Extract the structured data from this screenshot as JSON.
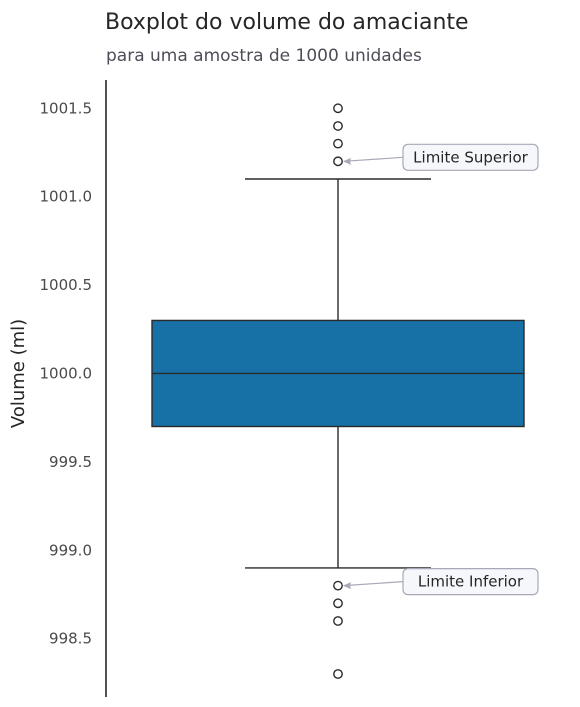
{
  "chart_data": {
    "type": "box",
    "title": "Boxplot do volume do amaciante",
    "subtitle": "para uma amostra de 1000 unidades",
    "xlabel": "",
    "ylabel": "Volume (ml)",
    "ylim": [
      998.17,
      1001.66
    ],
    "yticks": [
      998.5,
      999.0,
      999.5,
      1000.0,
      1000.5,
      1001.0,
      1001.5
    ],
    "ytick_labels": [
      "998.5",
      "999.0",
      "999.5",
      "1000.0",
      "1000.5",
      "1001.0",
      "1001.5"
    ],
    "grid": false,
    "box": {
      "q1": 999.7,
      "median": 1000.0,
      "q3": 1000.3,
      "whisker_low": 998.9,
      "whisker_high": 1001.1,
      "outliers": [
        1001.5,
        1001.4,
        1001.3,
        1001.2,
        998.8,
        998.7,
        998.6,
        998.3
      ]
    },
    "annotations": [
      {
        "text": "Limite Superior",
        "value": 1001.2
      },
      {
        "text": "Limite Inferior",
        "value": 998.8
      }
    ],
    "colors": {
      "box_fill": "#1770a6",
      "line": "#2b2b2b",
      "axis": "#262626",
      "arrow": "#a8a8b8",
      "annotation_border": "#a8a8b8",
      "annotation_fill": "#f6f7fb"
    }
  }
}
